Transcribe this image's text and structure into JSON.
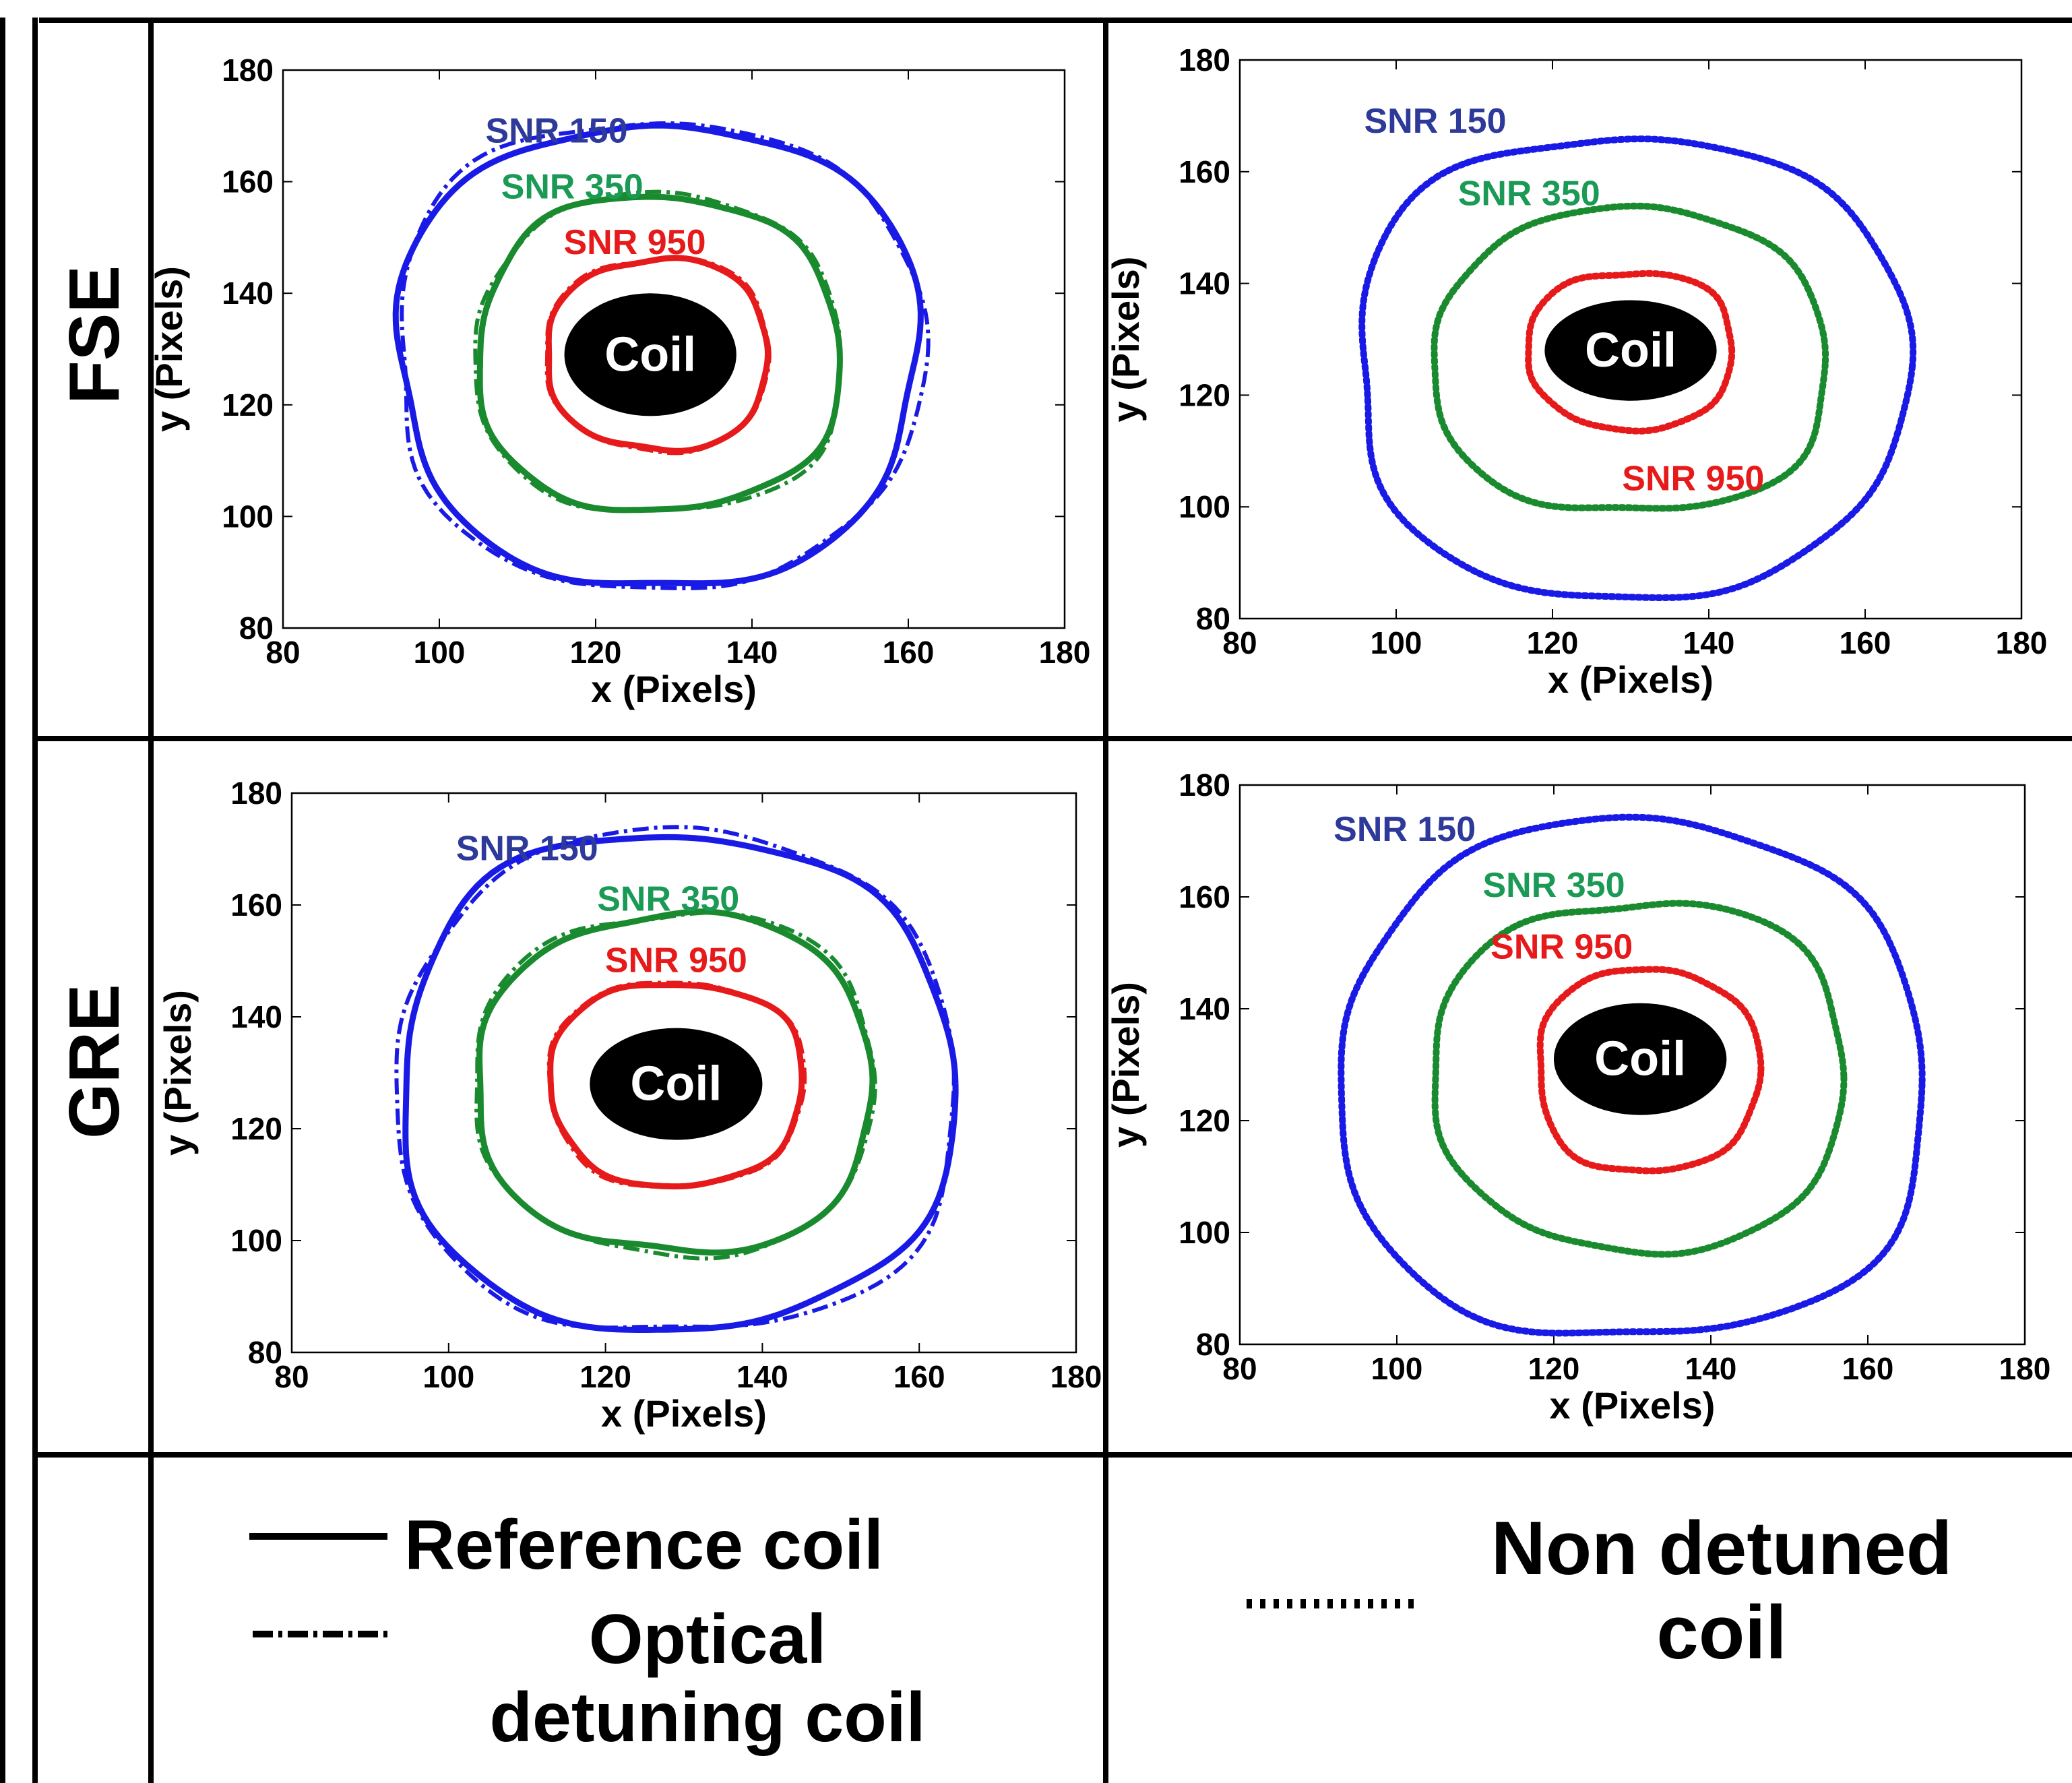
{
  "rows": [
    {
      "label": "FSE"
    },
    {
      "label": "GRE"
    }
  ],
  "legend": {
    "reference": "Reference coil",
    "optical": "Optical detuning coil",
    "non_detuned": "Non detuned coil"
  },
  "colors": {
    "snr150": "#1a1ae6",
    "snr350": "#1a8a2e",
    "snr950": "#e61a1a",
    "label150": "#2e3a99",
    "label350": "#1a9a55",
    "label950": "#e61a1a",
    "coil": "#000000"
  },
  "chart_data": [
    {
      "type": "line",
      "panel": "FSE reference and optical detuning coil",
      "xlabel": "x (Pixels)",
      "ylabel": "y (Pixels)",
      "xlim": [
        80,
        180
      ],
      "ylim": [
        80,
        180
      ],
      "xticks": [
        80,
        100,
        120,
        140,
        160,
        180
      ],
      "yticks": [
        80,
        100,
        120,
        140,
        160,
        180
      ],
      "coil": {
        "label": "Coil",
        "cx": 127,
        "cy": 129,
        "rx": 11,
        "ry": 11
      },
      "contours": [
        {
          "name": "SNR 150",
          "color_key": "snr150",
          "cx": 128,
          "cy": 129,
          "rx": 33,
          "ry": 41,
          "label_pos": [
            115,
            167
          ]
        },
        {
          "name": "SNR 350",
          "color_key": "snr350",
          "cx": 128,
          "cy": 129,
          "rx": 23,
          "ry": 28,
          "label_pos": [
            117,
            157
          ]
        },
        {
          "name": "SNR 950",
          "color_key": "snr950",
          "cx": 128,
          "cy": 129,
          "rx": 14,
          "ry": 17,
          "label_pos": [
            125,
            147
          ]
        }
      ]
    },
    {
      "type": "line",
      "panel": "FSE non detuned coil",
      "xlabel": "x (Pixels)",
      "ylabel": "y (Pixels)",
      "xlim": [
        80,
        180
      ],
      "ylim": [
        80,
        180
      ],
      "xticks": [
        80,
        100,
        120,
        140,
        160,
        180
      ],
      "yticks": [
        80,
        100,
        120,
        140,
        160,
        180
      ],
      "coil": {
        "label": "Coil",
        "cx": 130,
        "cy": 128,
        "rx": 11,
        "ry": 9
      },
      "contours": [
        {
          "name": "SNR 150",
          "color_key": "snr150",
          "cx": 130,
          "cy": 125,
          "rx": 35,
          "ry": 41,
          "label_pos": [
            105,
            167
          ]
        },
        {
          "name": "SNR 350",
          "color_key": "snr350",
          "cx": 130,
          "cy": 126,
          "rx": 25,
          "ry": 27,
          "label_pos": [
            117,
            154
          ]
        },
        {
          "name": "SNR 950",
          "color_key": "snr950",
          "cx": 130,
          "cy": 128,
          "rx": 13,
          "ry": 14,
          "label_pos": [
            138,
            103
          ]
        }
      ]
    },
    {
      "type": "line",
      "panel": "GRE reference and optical detuning coil",
      "xlabel": "x (Pixels)",
      "ylabel": "y (Pixels)",
      "xlim": [
        80,
        180
      ],
      "ylim": [
        80,
        180
      ],
      "xticks": [
        80,
        100,
        120,
        140,
        160,
        180
      ],
      "yticks": [
        80,
        100,
        120,
        140,
        160,
        180
      ],
      "coil": {
        "label": "Coil",
        "cx": 129,
        "cy": 128,
        "rx": 11,
        "ry": 10
      },
      "contours": [
        {
          "name": "SNR 150",
          "color_key": "snr150",
          "cx": 129,
          "cy": 128,
          "rx": 35,
          "ry": 44,
          "label_pos": [
            110,
            168
          ]
        },
        {
          "name": "SNR 350",
          "color_key": "snr350",
          "cx": 129,
          "cy": 128,
          "rx": 25,
          "ry": 30,
          "label_pos": [
            128,
            159
          ]
        },
        {
          "name": "SNR 950",
          "color_key": "snr950",
          "cx": 129,
          "cy": 128,
          "rx": 16,
          "ry": 18,
          "label_pos": [
            129,
            148
          ]
        }
      ]
    },
    {
      "type": "line",
      "panel": "GRE non detuned coil",
      "xlabel": "x (Pixels)",
      "ylabel": "y (Pixels)",
      "xlim": [
        80,
        180
      ],
      "ylim": [
        80,
        180
      ],
      "xticks": [
        80,
        100,
        120,
        140,
        160,
        180
      ],
      "yticks": [
        80,
        100,
        120,
        140,
        160,
        180
      ],
      "coil": {
        "label": "Coil",
        "cx": 131,
        "cy": 131,
        "rx": 11,
        "ry": 10
      },
      "contours": [
        {
          "name": "SNR 150",
          "color_key": "snr150",
          "cx": 130,
          "cy": 127,
          "rx": 37,
          "ry": 46,
          "label_pos": [
            101,
            170
          ]
        },
        {
          "name": "SNR 350",
          "color_key": "snr350",
          "cx": 131,
          "cy": 128,
          "rx": 26,
          "ry": 31,
          "label_pos": [
            120,
            160
          ]
        },
        {
          "name": "SNR 950",
          "color_key": "snr950",
          "cx": 132,
          "cy": 129,
          "rx": 14,
          "ry": 18,
          "label_pos": [
            121,
            149
          ]
        }
      ]
    }
  ]
}
